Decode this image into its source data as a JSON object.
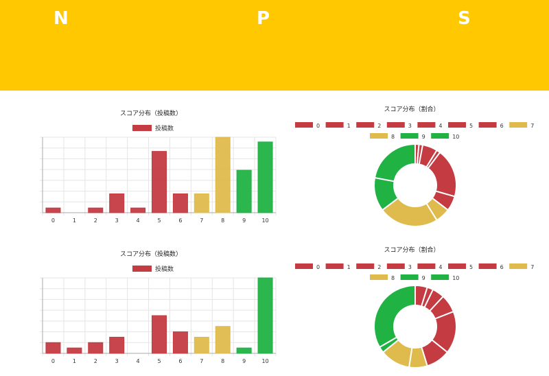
{
  "header": {
    "letters": [
      "N",
      "P",
      "S"
    ],
    "background": "#ffc800"
  },
  "colors": {
    "detractor": "#c43b42",
    "passive": "#dfbb4d",
    "promoter": "#21b244"
  },
  "chart_data": [
    {
      "type": "bar",
      "title": "スコア分布（投稿数）",
      "categories": [
        "0",
        "1",
        "2",
        "3",
        "4",
        "5",
        "6",
        "7",
        "8",
        "9",
        "10"
      ],
      "series": [
        {
          "name": "投稿数",
          "values": [
            1,
            0,
            1,
            4,
            1,
            13,
            4,
            4,
            16,
            9,
            15
          ]
        }
      ],
      "ylim": [
        0,
        16
      ],
      "grid": true,
      "legend": "top"
    },
    {
      "type": "pie",
      "title": "スコア分布（割合）",
      "categories": [
        "0",
        "1",
        "2",
        "3",
        "4",
        "5",
        "6",
        "7",
        "8",
        "9",
        "10"
      ],
      "values": [
        1,
        0,
        1,
        4,
        1,
        13,
        4,
        4,
        16,
        9,
        15
      ],
      "legend": "top"
    },
    {
      "type": "bar",
      "title": "スコア分布（投稿数）",
      "categories": [
        "0",
        "1",
        "2",
        "3",
        "4",
        "5",
        "6",
        "7",
        "8",
        "9",
        "10"
      ],
      "series": [
        {
          "name": "投稿数",
          "values": [
            2,
            1,
            2,
            3,
            0,
            7,
            4,
            3,
            5,
            1,
            14
          ]
        }
      ],
      "ylim": [
        0,
        14
      ],
      "grid": true,
      "legend": "top"
    },
    {
      "type": "pie",
      "title": "スコア分布（割合）",
      "categories": [
        "0",
        "1",
        "2",
        "3",
        "4",
        "5",
        "6",
        "7",
        "8",
        "9",
        "10"
      ],
      "values": [
        2,
        1,
        2,
        3,
        0,
        7,
        4,
        3,
        5,
        1,
        14
      ],
      "legend": "top"
    }
  ]
}
